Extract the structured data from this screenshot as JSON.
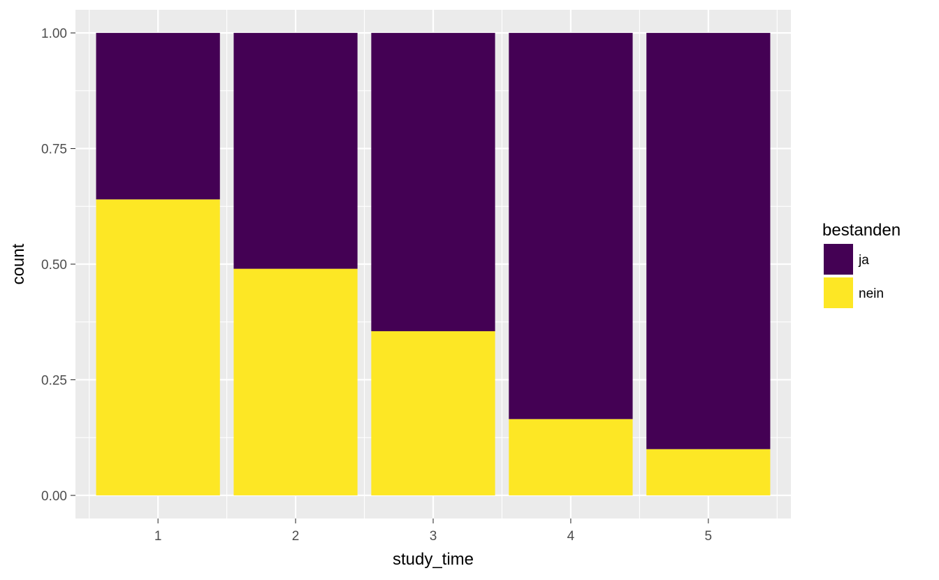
{
  "chart_data": {
    "type": "bar",
    "stacked": true,
    "position": "fill",
    "categories": [
      "1",
      "2",
      "3",
      "4",
      "5"
    ],
    "series": [
      {
        "name": "ja",
        "color": "#440154",
        "values": [
          0.36,
          0.51,
          0.645,
          0.835,
          0.9
        ]
      },
      {
        "name": "nein",
        "color": "#FDE725",
        "values": [
          0.64,
          0.49,
          0.355,
          0.165,
          0.1
        ]
      }
    ],
    "xlabel": "study_time",
    "ylabel": "count",
    "ylim": [
      -0.05,
      1.05
    ],
    "yticks": [
      "0.00",
      "0.25",
      "0.50",
      "0.75",
      "1.00"
    ],
    "ytick_values": [
      0,
      0.25,
      0.5,
      0.75,
      1
    ],
    "grid": true,
    "panel_background": "#EBEBEB",
    "legend": {
      "title": "bestanden",
      "placement": "right",
      "entries": [
        "ja",
        "nein"
      ]
    }
  }
}
